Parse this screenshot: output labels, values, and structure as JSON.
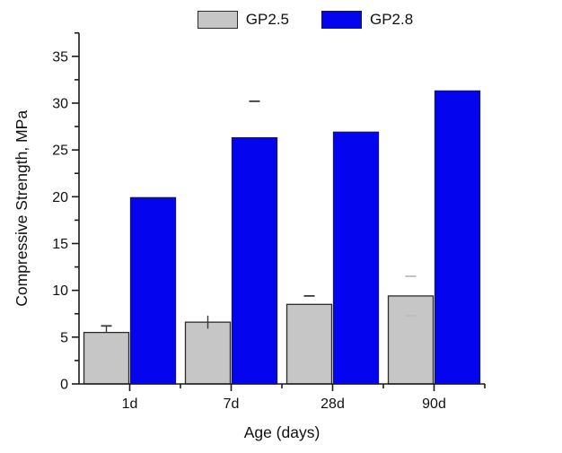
{
  "chart_data": {
    "type": "bar",
    "categories": [
      "1d",
      "7d",
      "28d",
      "90d"
    ],
    "series": [
      {
        "name": "GP2.5",
        "fill": "#c6c6c6",
        "stroke": "#2b2b2b",
        "values": [
          5.5,
          6.6,
          8.5,
          9.4
        ]
      },
      {
        "name": "GP2.8",
        "fill": "#0404ee",
        "stroke": "#14146e",
        "values": [
          19.9,
          26.3,
          26.9,
          31.3
        ]
      }
    ],
    "error_marks": [
      {
        "series": 0,
        "group": 0,
        "kind": "stem-cap",
        "top": 6.2,
        "bottom": 5.5
      },
      {
        "series": 0,
        "group": 1,
        "kind": "stem",
        "top": 7.3,
        "bottom": 5.9
      },
      {
        "series": 0,
        "group": 2,
        "kind": "cap",
        "y": 9.4
      },
      {
        "series": 0,
        "group": 3,
        "kind": "cap",
        "y": 11.5,
        "shade": "light"
      },
      {
        "series": 0,
        "group": 3,
        "kind": "cap",
        "y": 7.3,
        "shade": "light"
      },
      {
        "series": 1,
        "group": 1,
        "kind": "cap",
        "y": 30.2
      }
    ],
    "xlabel": "Age (days)",
    "ylabel": "Compressive Strength, MPa",
    "ylim": [
      0,
      37.5
    ],
    "yticks": [
      0,
      5,
      10,
      15,
      20,
      25,
      30,
      35
    ],
    "ytick_minor_step": 2.5,
    "grid": false,
    "legend_position": "top-center",
    "axis_color": "#1a1a1a",
    "error_dark_color": "#3a3a3a",
    "error_light_color": "#bdbdbd"
  }
}
